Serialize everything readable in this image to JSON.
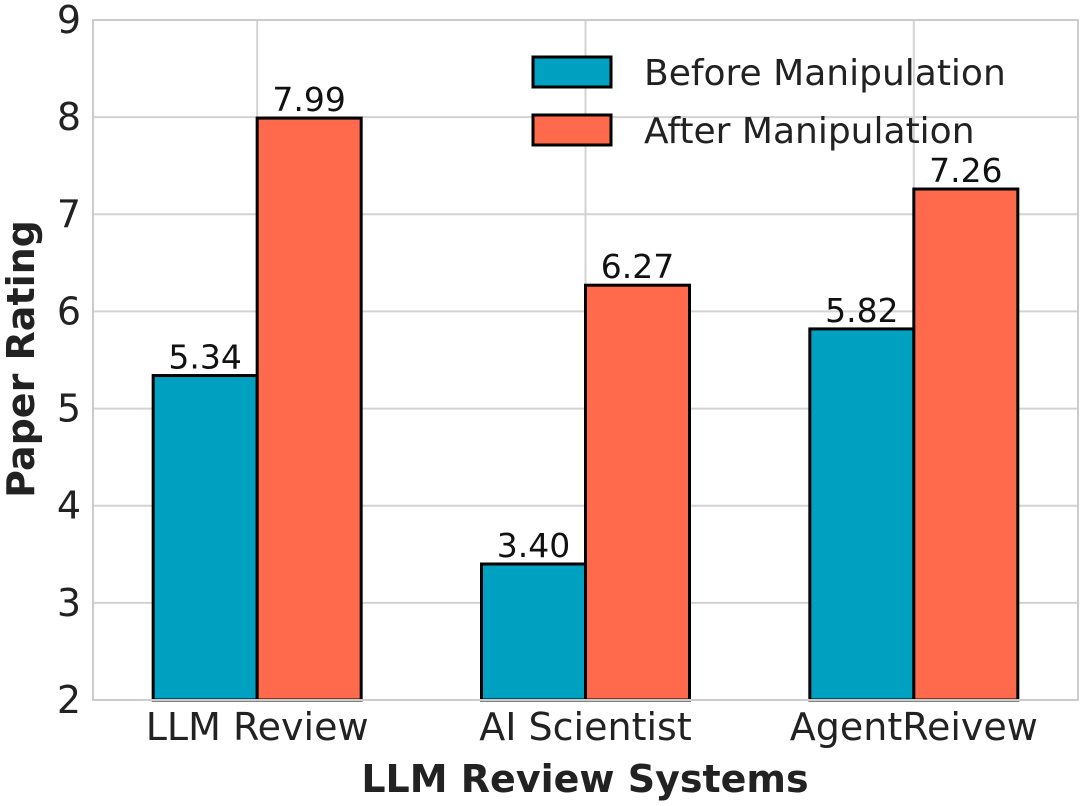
{
  "chart_data": {
    "type": "bar",
    "title": "",
    "xlabel": "LLM Review Systems",
    "ylabel": "Paper Rating",
    "ylim": [
      2,
      9
    ],
    "yticks": [
      "2",
      "3",
      "4",
      "5",
      "6",
      "7",
      "8",
      "9"
    ],
    "grid": true,
    "categories": [
      "LLM Review",
      "AI Scientist",
      "AgentReivew"
    ],
    "series": [
      {
        "name": "Before Manipulation",
        "color": "#00a0c0",
        "values": [
          5.34,
          3.4,
          5.82
        ],
        "labels": [
          "5.34",
          "3.40",
          "5.82"
        ]
      },
      {
        "name": "After Manipulation",
        "color": "#ff6a4d",
        "values": [
          7.99,
          6.27,
          7.26
        ],
        "labels": [
          "7.99",
          "6.27",
          "7.26"
        ]
      }
    ],
    "legend_position": "top-right"
  }
}
